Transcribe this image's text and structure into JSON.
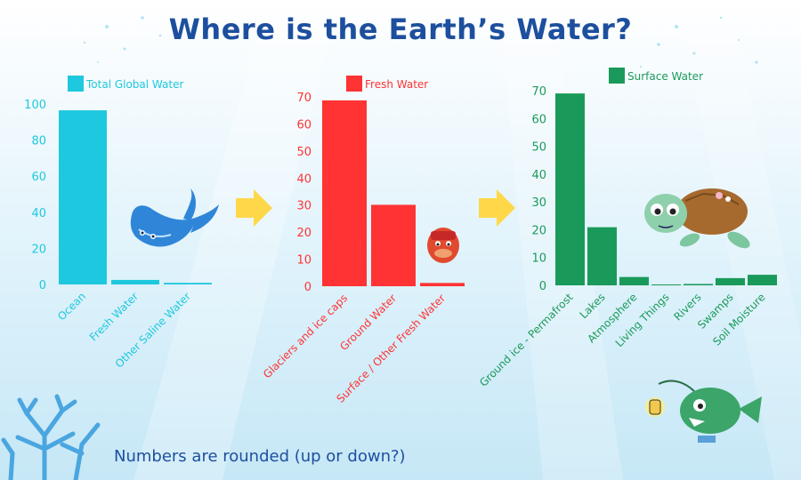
{
  "title": "Where is the Earth’s Water?",
  "note": "Numbers are rounded (up or down?)",
  "chart_data": [
    {
      "type": "bar",
      "legend": "Total Global Water",
      "color": "#1ec8de",
      "categories": [
        "Ocean",
        "Fresh Water",
        "Other Saline Water"
      ],
      "values": [
        96.5,
        2.5,
        0.9
      ],
      "yticks": [
        "0",
        "20",
        "40",
        "60",
        "80",
        "100"
      ],
      "ylim": [
        0,
        100
      ]
    },
    {
      "type": "bar",
      "legend": "Fresh Water",
      "color": "#ff3333",
      "categories": [
        "Glaciers and ice caps",
        "Ground Water",
        "Surface / Other Fresh Water"
      ],
      "values": [
        68.7,
        30.1,
        1.2
      ],
      "yticks": [
        "0",
        "10",
        "20",
        "30",
        "40",
        "50",
        "60",
        "70"
      ],
      "ylim": [
        0,
        70
      ]
    },
    {
      "type": "bar",
      "legend": "Surface Water",
      "color": "#1a9a5a",
      "categories": [
        "Ground ice - Permafrost",
        "Lakes",
        "Atmosphere",
        "Living Things",
        "Rivers",
        "Swamps",
        "Soil Moisture"
      ],
      "values": [
        69,
        20.9,
        3,
        0.26,
        0.49,
        2.6,
        3.8
      ],
      "yticks": [
        "0",
        "10",
        "20",
        "30",
        "40",
        "50",
        "60",
        "70"
      ],
      "ylim": [
        0,
        70
      ]
    }
  ],
  "colors": {
    "title": "#1d4f9e",
    "arrow": "#ffd84a"
  },
  "icons": [
    "manta-ray-icon",
    "arrow-right-icon",
    "crab-icon",
    "arrow-right-icon",
    "sea-turtle-icon",
    "anglerfish-icon",
    "coral-icon"
  ]
}
